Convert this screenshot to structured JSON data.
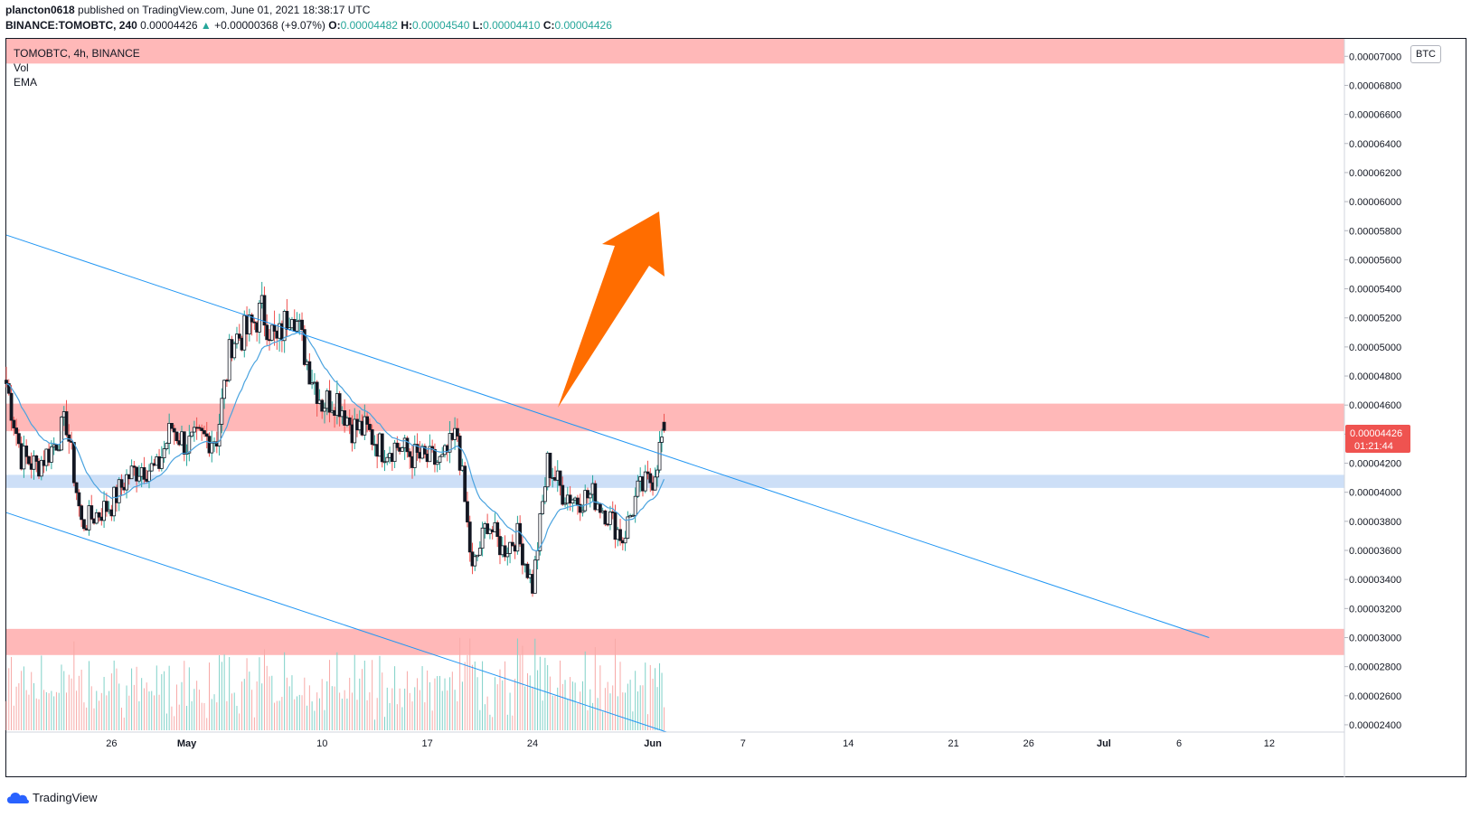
{
  "header": {
    "author": "plancton0618",
    "published_text": "published on TradingView.com, June 01, 2021 18:38:17 UTC",
    "symbol_line": "BINANCE:TOMOBTC, 240",
    "last": "0.00004426",
    "change": "+0.00000368 (+9.07%)",
    "o_label": "O:",
    "o": "0.00004482",
    "h_label": "H:",
    "h": "0.00004540",
    "l_label": "L:",
    "l": "0.00004410",
    "c_label": "C:",
    "c": "0.00004426"
  },
  "legend": {
    "title": "TOMOBTC, 4h, BINANCE",
    "vol": "Vol",
    "ema": "EMA"
  },
  "currency_label": "BTC",
  "price_tag": {
    "price": "0.00004426",
    "countdown": "01:21:44"
  },
  "footer": {
    "brand": "TradingView"
  },
  "colors": {
    "up": "#26a69a",
    "down": "#ef5350",
    "candle": "#131722",
    "zone_red": "#ffb8b8",
    "zone_blue": "#cddff7",
    "trendline": "#2196f3",
    "ema": "#4aa3df",
    "arrow": "#ff6d00",
    "tag": "#ef5350"
  },
  "chart_data": {
    "type": "candlestick",
    "title": "TOMOBTC, 4h, BINANCE",
    "y_axis_ticks": [
      "0.00007000",
      "0.00006800",
      "0.00006600",
      "0.00006400",
      "0.00006200",
      "0.00006000",
      "0.00005800",
      "0.00005600",
      "0.00005400",
      "0.00005200",
      "0.00005000",
      "0.00004800",
      "0.00004600",
      "0.00004400",
      "0.00004200",
      "0.00004000",
      "0.00003800",
      "0.00003600",
      "0.00003400",
      "0.00003200",
      "0.00003000",
      "0.00002800",
      "0.00002600",
      "0.00002400"
    ],
    "x_axis_ticks": [
      {
        "label": "26",
        "date": "2021-04-26"
      },
      {
        "label": "May",
        "date": "2021-05-01"
      },
      {
        "label": "10",
        "date": "2021-05-10"
      },
      {
        "label": "17",
        "date": "2021-05-17"
      },
      {
        "label": "24",
        "date": "2021-05-24"
      },
      {
        "label": "Jun",
        "date": "2021-06-01"
      },
      {
        "label": "7",
        "date": "2021-06-07"
      },
      {
        "label": "14",
        "date": "2021-06-14"
      },
      {
        "label": "21",
        "date": "2021-06-21"
      },
      {
        "label": "26",
        "date": "2021-06-26"
      },
      {
        "label": "Jul",
        "date": "2021-07-01"
      },
      {
        "label": "6",
        "date": "2021-07-06"
      },
      {
        "label": "12",
        "date": "2021-07-12"
      }
    ],
    "x_range": [
      "2021-04-19",
      "2021-07-17"
    ],
    "y_range": [
      2.35e-05,
      7.12e-05
    ],
    "close_path": [
      {
        "date": "2021-04-19",
        "close": 4.75e-05
      },
      {
        "date": "2021-04-20",
        "close": 4.25e-05
      },
      {
        "date": "2021-04-21",
        "close": 4.18e-05
      },
      {
        "date": "2021-04-22",
        "close": 4.3e-05
      },
      {
        "date": "2021-04-23",
        "close": 4.48e-05
      },
      {
        "date": "2021-04-24",
        "close": 3.78e-05
      },
      {
        "date": "2021-04-25",
        "close": 3.85e-05
      },
      {
        "date": "2021-04-26",
        "close": 3.92e-05
      },
      {
        "date": "2021-04-27",
        "close": 4.1e-05
      },
      {
        "date": "2021-04-28",
        "close": 4.18e-05
      },
      {
        "date": "2021-04-29",
        "close": 4.15e-05
      },
      {
        "date": "2021-04-30",
        "close": 4.45e-05
      },
      {
        "date": "2021-05-01",
        "close": 4.32e-05
      },
      {
        "date": "2021-05-02",
        "close": 4.37e-05
      },
      {
        "date": "2021-05-03",
        "close": 4.38e-05
      },
      {
        "date": "2021-05-04",
        "close": 5.05e-05
      },
      {
        "date": "2021-05-05",
        "close": 5.1e-05
      },
      {
        "date": "2021-05-06",
        "close": 5.25e-05
      },
      {
        "date": "2021-05-07",
        "close": 5.02e-05
      },
      {
        "date": "2021-05-08",
        "close": 5.3e-05
      },
      {
        "date": "2021-05-09",
        "close": 4.9e-05
      },
      {
        "date": "2021-05-10",
        "close": 4.62e-05
      },
      {
        "date": "2021-05-11",
        "close": 4.65e-05
      },
      {
        "date": "2021-05-12",
        "close": 4.45e-05
      },
      {
        "date": "2021-05-13",
        "close": 4.42e-05
      },
      {
        "date": "2021-05-14",
        "close": 4.3e-05
      },
      {
        "date": "2021-05-15",
        "close": 4.32e-05
      },
      {
        "date": "2021-05-16",
        "close": 4.25e-05
      },
      {
        "date": "2021-05-17",
        "close": 4.22e-05
      },
      {
        "date": "2021-05-18",
        "close": 4.2e-05
      },
      {
        "date": "2021-05-19",
        "close": 4.4e-05
      },
      {
        "date": "2021-05-20",
        "close": 3.45e-05
      },
      {
        "date": "2021-05-21",
        "close": 3.8e-05
      },
      {
        "date": "2021-05-22",
        "close": 3.6e-05
      },
      {
        "date": "2021-05-23",
        "close": 3.7e-05
      },
      {
        "date": "2021-05-24",
        "close": 3.35e-05
      },
      {
        "date": "2021-05-25",
        "close": 4.2e-05
      },
      {
        "date": "2021-05-26",
        "close": 4e-05
      },
      {
        "date": "2021-05-27",
        "close": 3.95e-05
      },
      {
        "date": "2021-05-28",
        "close": 3.98e-05
      },
      {
        "date": "2021-05-29",
        "close": 3.85e-05
      },
      {
        "date": "2021-05-30",
        "close": 3.68e-05
      },
      {
        "date": "2021-05-31",
        "close": 4e-05
      },
      {
        "date": "2021-06-01",
        "close": 4.1e-05
      },
      {
        "date": "2021-06-01T18:00",
        "close": 4.426e-05
      }
    ],
    "zones": [
      {
        "name": "resistance",
        "from": 6.95e-05,
        "to": 7.12e-05,
        "color": "red"
      },
      {
        "name": "resistance",
        "from": 4.42e-05,
        "to": 4.61e-05,
        "color": "red"
      },
      {
        "name": "support",
        "from": 4.03e-05,
        "to": 4.12e-05,
        "color": "blue"
      },
      {
        "name": "support",
        "from": 2.88e-05,
        "to": 3.06e-05,
        "color": "red"
      }
    ],
    "trendlines": [
      {
        "from": {
          "date": "2021-04-19",
          "price": 5.77e-05
        },
        "to": {
          "date": "2021-07-08",
          "price": 3e-05
        }
      },
      {
        "from": {
          "date": "2021-04-19",
          "price": 3.86e-05
        },
        "to": {
          "date": "2021-06-01T22:00",
          "price": 2.35e-05
        }
      }
    ],
    "ema_visible": true,
    "volume_visible": true,
    "grid": false
  }
}
